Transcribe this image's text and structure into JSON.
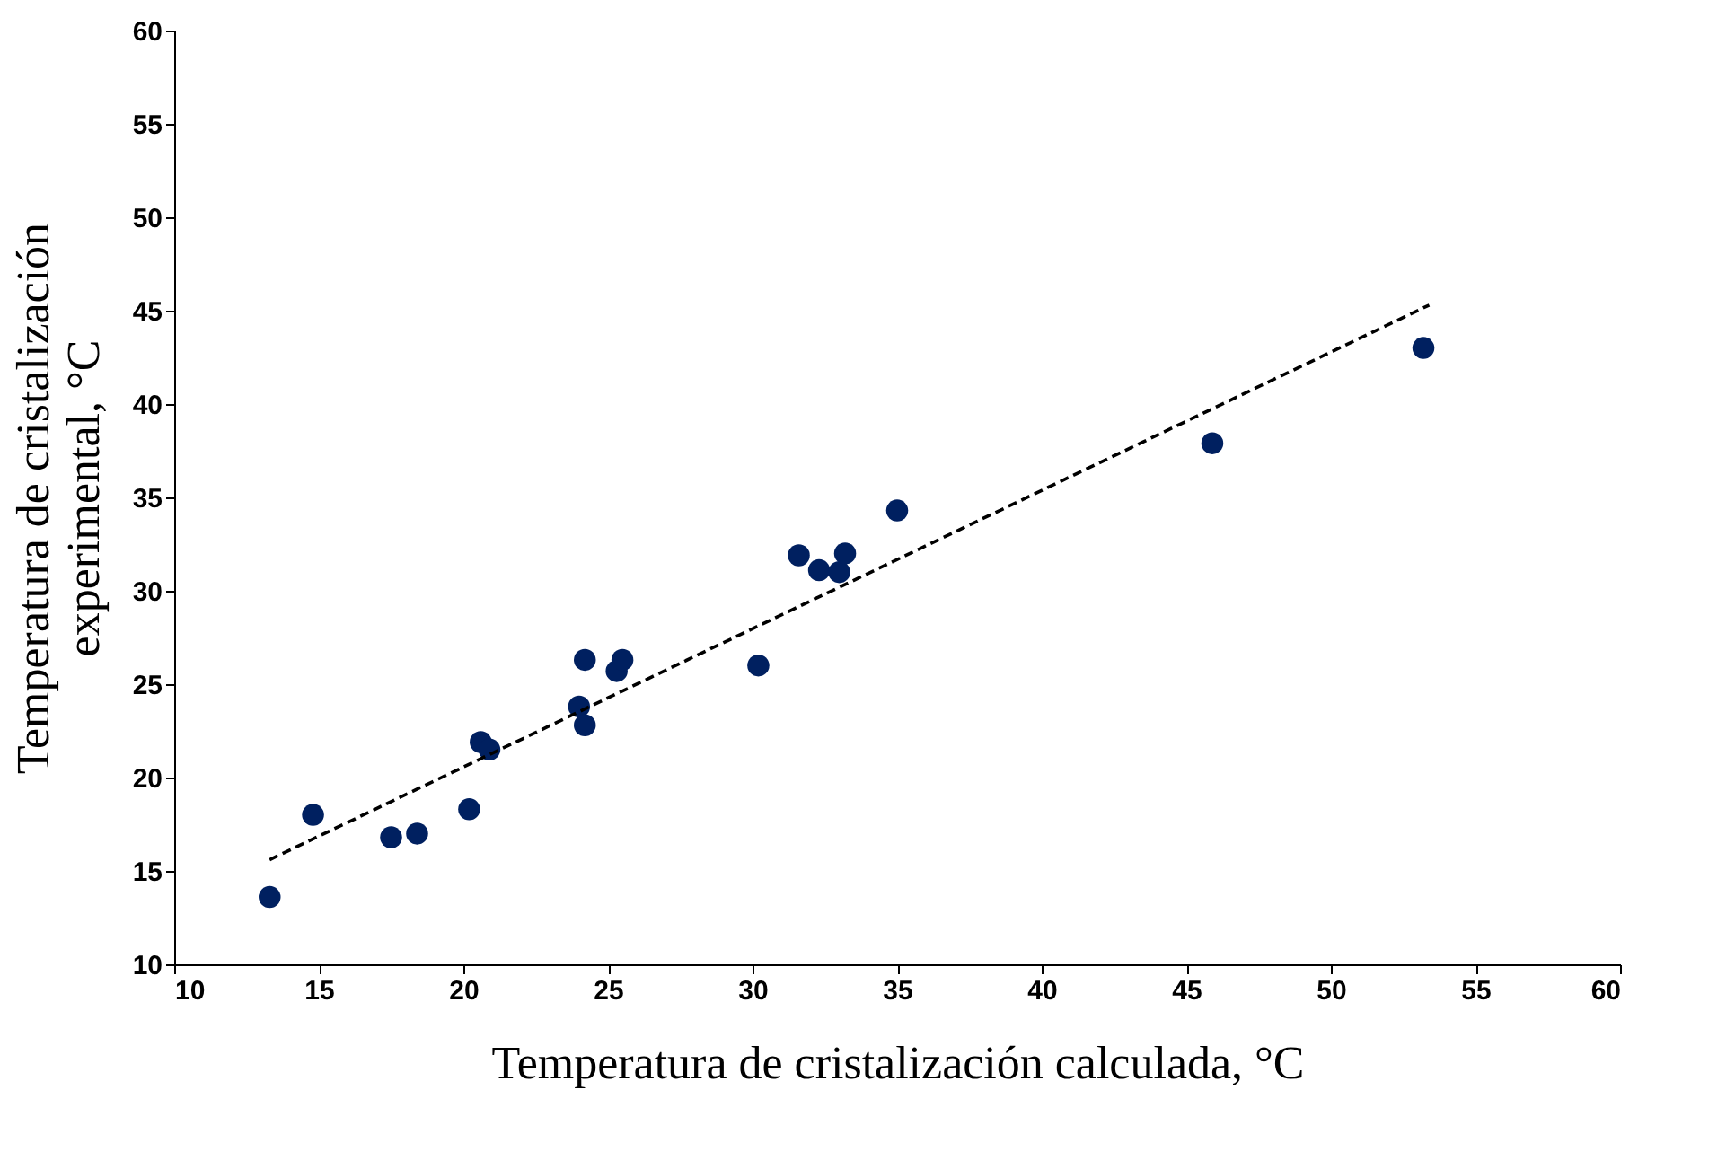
{
  "chart_data": {
    "type": "scatter",
    "xlabel": "Temperatura de cristalización calculada, °C",
    "ylabel": "Temperatura de cristalización experimental, °C",
    "xlim": [
      10,
      60
    ],
    "xticks": [
      10,
      15,
      20,
      25,
      30,
      35,
      40,
      45,
      50,
      55,
      60
    ],
    "ylim": [
      10,
      60
    ],
    "yticks": [
      10,
      15,
      20,
      25,
      30,
      35,
      40,
      45,
      50,
      55,
      60
    ],
    "grid": false,
    "series": [
      {
        "color": "#002060",
        "marker": "circle",
        "x": [
          13.3,
          14.8,
          17.5,
          18.4,
          20.2,
          20.6,
          20.9,
          24.0,
          24.2,
          24.2,
          25.3,
          25.5,
          30.2,
          31.6,
          32.3,
          33.0,
          33.2,
          35.0,
          45.9,
          53.2
        ],
        "values": [
          13.6,
          18.0,
          16.8,
          17.0,
          18.3,
          21.9,
          21.5,
          23.8,
          26.3,
          22.8,
          25.7,
          26.3,
          26.0,
          31.9,
          31.1,
          31.0,
          32.0,
          34.3,
          37.9,
          43.0
        ]
      },
      {
        "type": "line",
        "color": "#000000",
        "line_style": "dashed",
        "x": [
          13.3,
          53.4
        ],
        "values": [
          15.6,
          45.3
        ]
      }
    ]
  }
}
